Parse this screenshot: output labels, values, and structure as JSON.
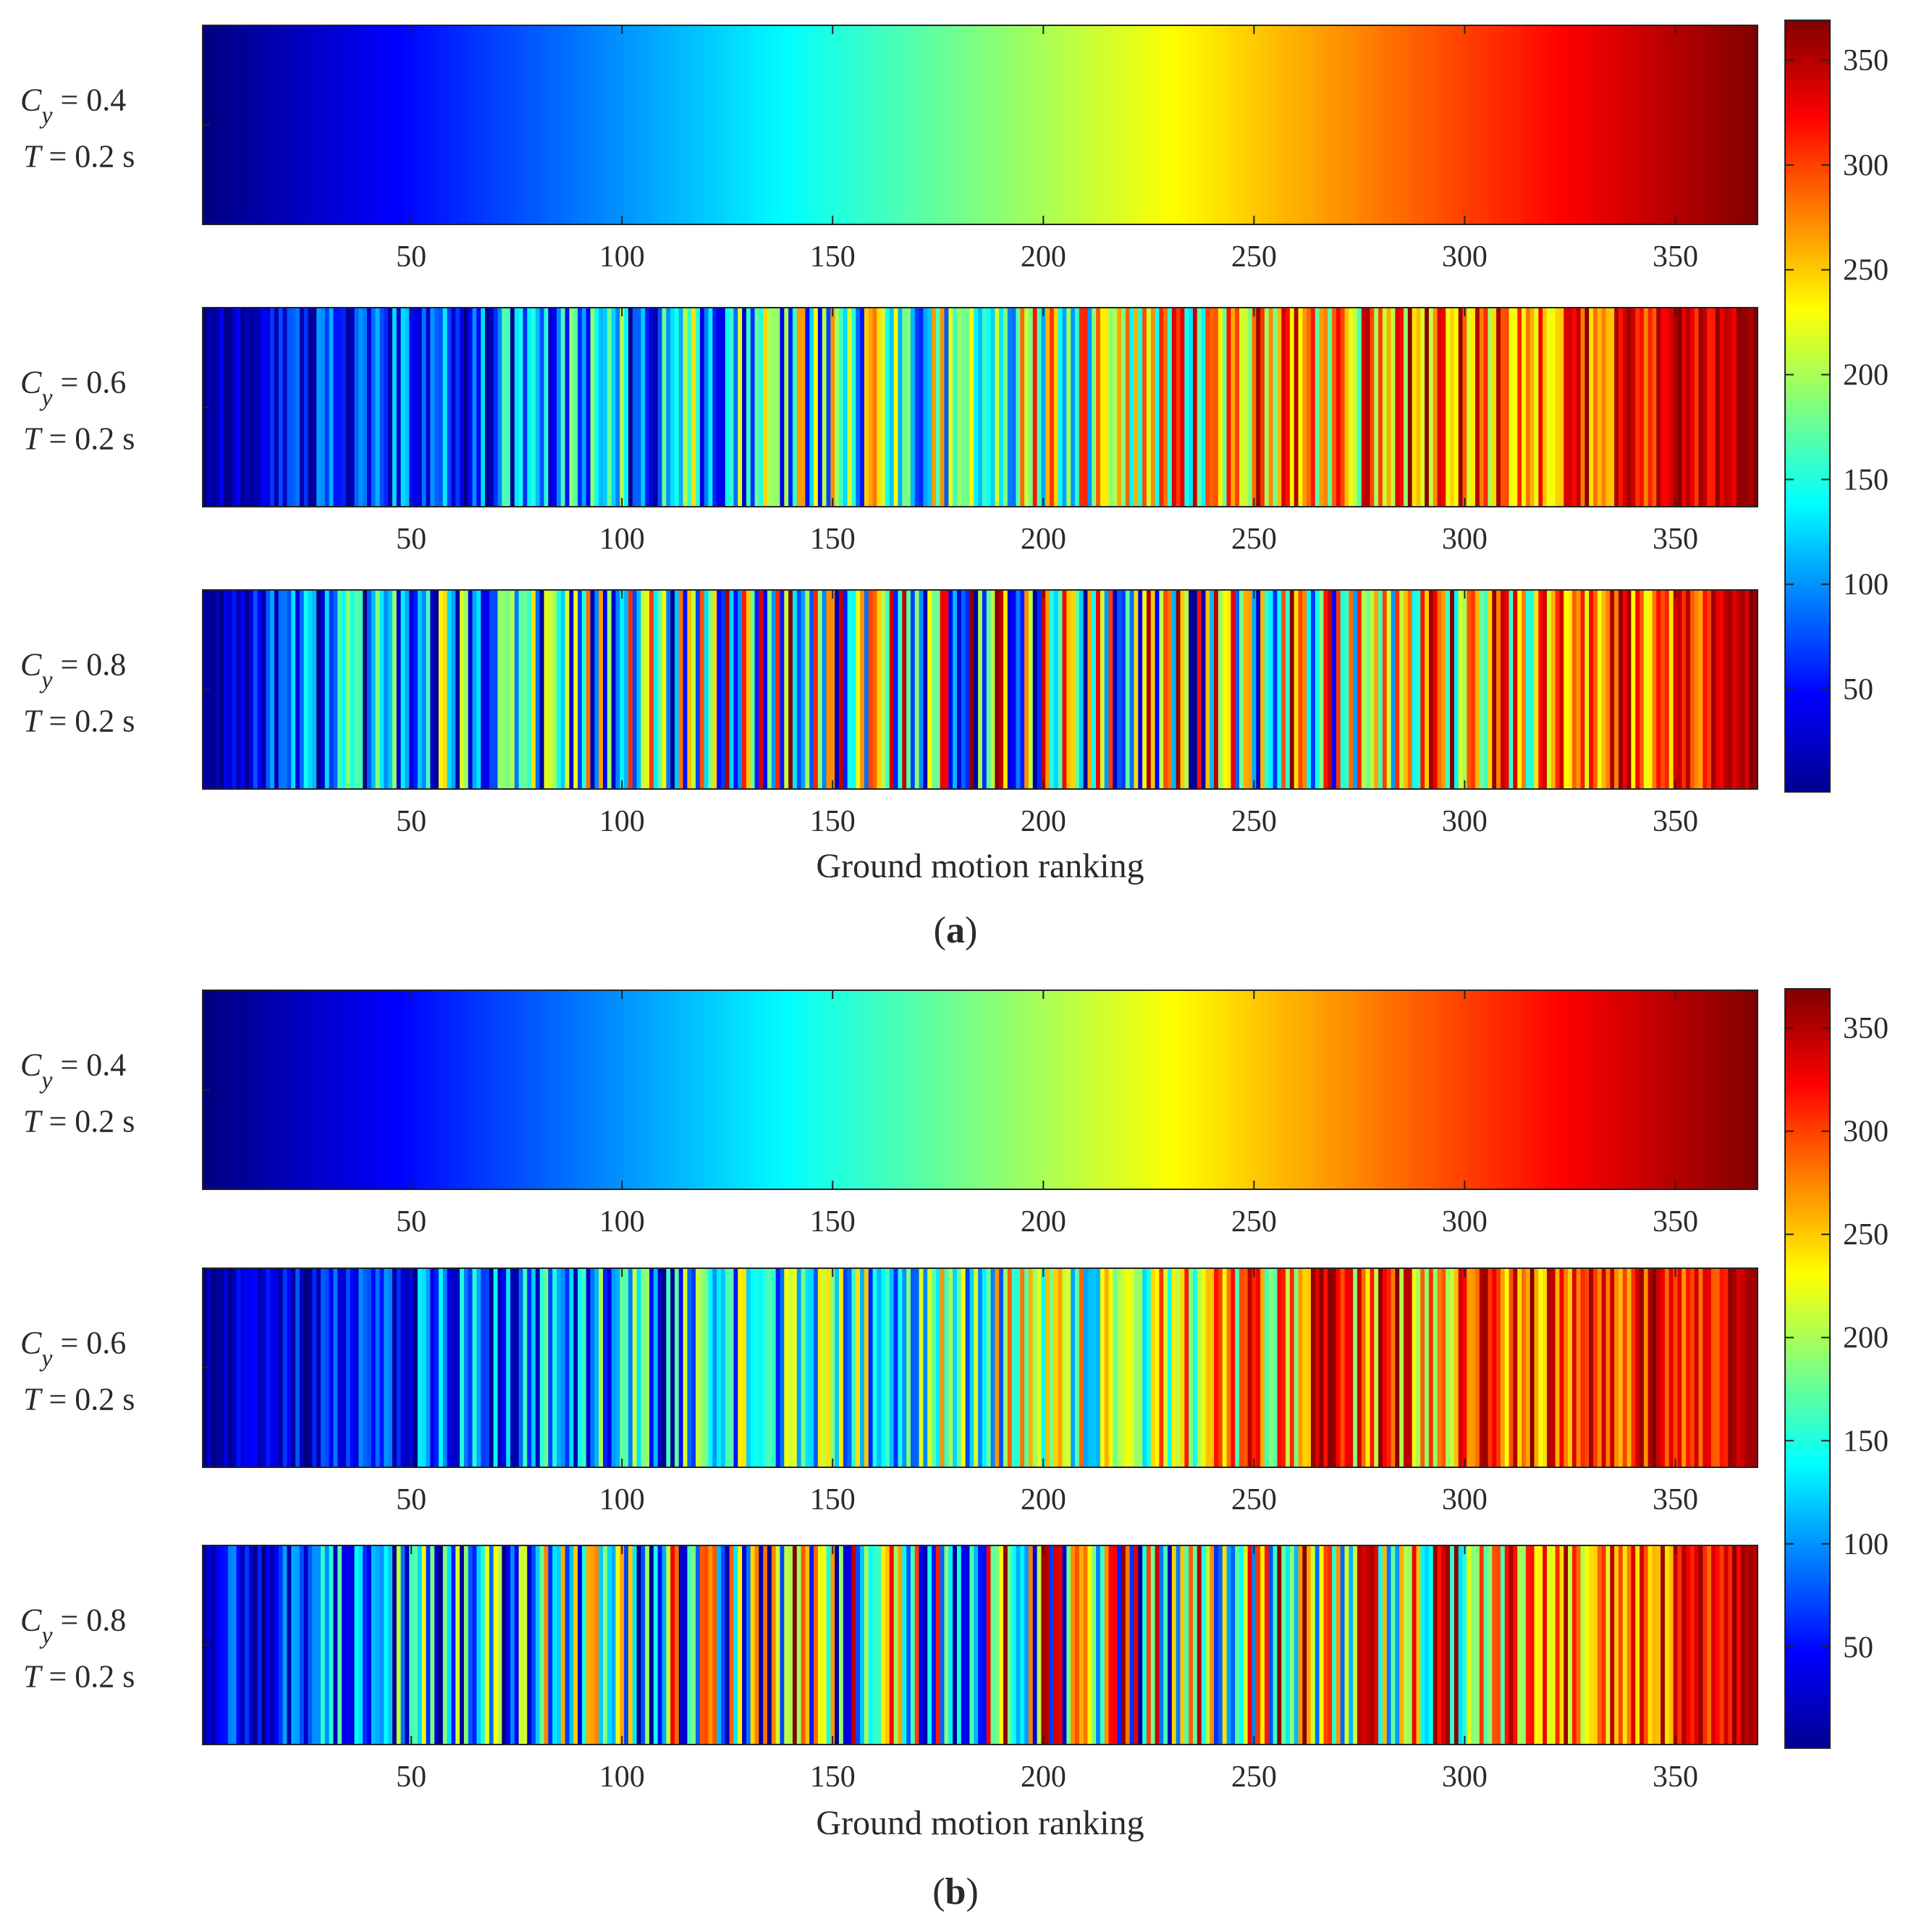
{
  "chart_data": {
    "type": "heatmap",
    "xlabel": "Ground motion ranking",
    "x_ticks": [
      50,
      100,
      150,
      200,
      250,
      300,
      350
    ],
    "xlim": [
      1,
      369
    ],
    "n_columns": 369,
    "colormap": "jet",
    "colorbar": {
      "range": [
        1,
        369
      ],
      "ticks": [
        50,
        100,
        150,
        200,
        250,
        300,
        350
      ]
    },
    "panels": [
      {
        "label_prefix": "(",
        "label": "a",
        "label_suffix": ")",
        "rows": [
          {
            "name": "C",
            "sub": "y",
            "cy_text": " = 0.4",
            "period_var": "T",
            "period_text": " = 0.2 s",
            "ordering": "identity",
            "seed": 0
          },
          {
            "name": "C",
            "sub": "y",
            "cy_text": " = 0.6",
            "period_var": "T",
            "period_text": " = 0.2 s",
            "ordering": "local-shuffle",
            "window": 120,
            "seed": 17
          },
          {
            "name": "C",
            "sub": "y",
            "cy_text": " = 0.8",
            "period_var": "T",
            "period_text": " = 0.2 s",
            "ordering": "local-shuffle",
            "window": 260,
            "seed": 43
          }
        ]
      },
      {
        "label_prefix": "(",
        "label": "b",
        "label_suffix": ")",
        "rows": [
          {
            "name": "C",
            "sub": "y",
            "cy_text": " = 0.4",
            "period_var": "T",
            "period_text": " = 0.2 s",
            "ordering": "identity",
            "seed": 0
          },
          {
            "name": "C",
            "sub": "y",
            "cy_text": " = 0.6",
            "period_var": "T",
            "period_text": " = 0.2 s",
            "ordering": "local-shuffle",
            "window": 110,
            "seed": 71
          },
          {
            "name": "C",
            "sub": "y",
            "cy_text": " = 0.8",
            "period_var": "T",
            "period_text": " = 0.2 s",
            "ordering": "local-shuffle",
            "window": 250,
            "seed": 97
          }
        ]
      }
    ]
  }
}
